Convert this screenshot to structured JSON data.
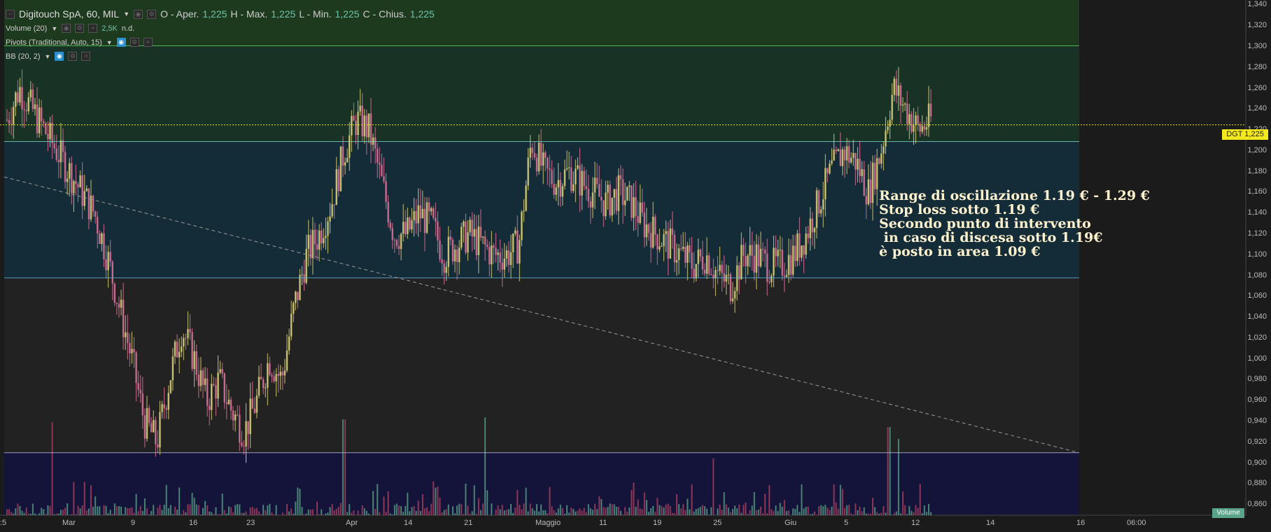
{
  "header": {
    "symbol": "Digitouch SpA, 60, MIL",
    "open_label": "O - Aper.",
    "open_value": "1,225",
    "high_label": "H - Max.",
    "high_value": "1,225",
    "low_label": "L - Min.",
    "low_value": "1,225",
    "close_label": "C - Chius.",
    "close_value": "1,225"
  },
  "indicators": {
    "volume": {
      "label": "Volume (20)",
      "value": "2,5K",
      "extra": "n.d."
    },
    "pivots": {
      "label": "Pivots (Traditional, Auto, 15)"
    },
    "bb": {
      "label": "BB (20, 2)"
    }
  },
  "price_badge": {
    "symbol": "DGT",
    "value": "1,225"
  },
  "volume_badge": "Volume",
  "annotation": "Range di oscillazione 1.19 € - 1.29 €\nStop loss sotto 1.19 €\nSecondo punto di intervento\n in caso di discesa sotto 1.19€\nè posto in area 1.09 €",
  "colors": {
    "up": "#c8c070",
    "down": "#c86a8e",
    "vol_up": "#4f8f7c",
    "vol_down": "#9a3a5a",
    "pivot_line": "#88c0c8",
    "price_line": "#f4e81e"
  },
  "chart_data": {
    "type": "candlestick",
    "y_ticks": [
      "1,340",
      "1,320",
      "1,300",
      "1,280",
      "1,260",
      "1,240",
      "1,220",
      "1,200",
      "1,180",
      "1,160",
      "1,140",
      "1,120",
      "1,100",
      "1,080",
      "1,060",
      "1,040",
      "1,020",
      "1,000",
      "0,980",
      "0,960",
      "0,940",
      "0,920",
      "0,900",
      "0,880",
      "0,860"
    ],
    "x_ticks": [
      ":5",
      "Mar",
      "9",
      "16",
      "23",
      "Apr",
      "14",
      "21",
      "Maggio",
      "11",
      "19",
      "25",
      "Giu",
      "5",
      "12",
      "14",
      "16",
      "06:00"
    ],
    "ylim": [
      0.85,
      1.345
    ],
    "pivot_levels": [
      1.301,
      1.209,
      1.078,
      0.91
    ],
    "last_price": 1.225,
    "trendline": [
      {
        "x": 0,
        "y": 1.175
      },
      {
        "x": 1.0,
        "y": 0.91
      }
    ],
    "path": [
      1.23,
      1.26,
      1.24,
      1.22,
      1.2,
      1.18,
      1.16,
      1.14,
      1.1,
      1.05,
      1.0,
      0.94,
      0.92,
      0.98,
      1.03,
      1.0,
      0.96,
      0.98,
      0.95,
      0.93,
      0.96,
      1.0,
      0.98,
      1.05,
      1.1,
      1.12,
      1.15,
      1.2,
      1.23,
      1.22,
      1.17,
      1.12,
      1.12,
      1.14,
      1.13,
      1.1,
      1.11,
      1.12,
      1.11,
      1.1,
      1.1,
      1.11,
      1.21,
      1.18,
      1.17,
      1.18,
      1.17,
      1.16,
      1.15,
      1.16,
      1.15,
      1.13,
      1.12,
      1.11,
      1.1,
      1.09,
      1.1,
      1.08,
      1.07,
      1.1,
      1.1,
      1.09,
      1.09,
      1.1,
      1.12,
      1.15,
      1.18,
      1.2,
      1.19,
      1.16,
      1.2,
      1.26,
      1.24,
      1.22,
      1.23
    ],
    "volume_spikes": [
      {
        "x": 0.045,
        "v": 0.95
      },
      {
        "x": 0.316,
        "v": 0.98
      },
      {
        "x": 0.447,
        "v": 1.0
      },
      {
        "x": 0.66,
        "v": 0.58
      },
      {
        "x": 0.823,
        "v": 0.9
      },
      {
        "x": 0.832,
        "v": 0.78
      }
    ],
    "x_extent": 0.862
  }
}
